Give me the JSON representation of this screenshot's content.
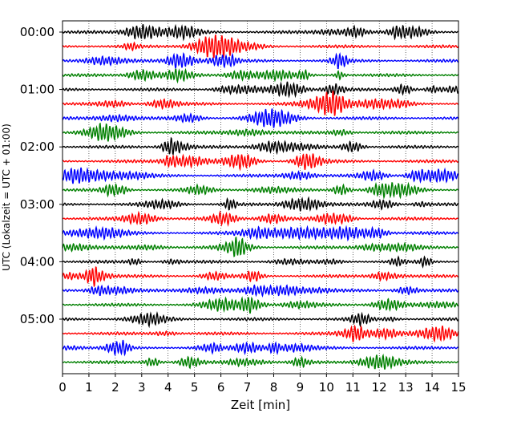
{
  "chart_data": {
    "type": "line",
    "title": "",
    "xlabel": "Zeit  [min]",
    "ylabel": "UTC (Lokalzeit = UTC + 01:00)",
    "xlim": [
      0,
      15
    ],
    "x_ticks": [
      "0",
      "1",
      "2",
      "3",
      "4",
      "5",
      "6",
      "7",
      "8",
      "9",
      "10",
      "11",
      "12",
      "13",
      "14",
      "15"
    ],
    "y_ticks": [
      "00:00",
      "01:00",
      "02:00",
      "03:00",
      "04:00",
      "05:00"
    ],
    "grid": "vertical dotted at each minute",
    "trace_interval_minutes": 15,
    "trace_count": 24,
    "trace_colors": [
      "#000000",
      "#ff0000",
      "#0000ff",
      "#008000"
    ],
    "series": [
      {
        "start": "00:00",
        "color": "#000000"
      },
      {
        "start": "00:15",
        "color": "#ff0000"
      },
      {
        "start": "00:30",
        "color": "#0000ff"
      },
      {
        "start": "00:45",
        "color": "#008000"
      },
      {
        "start": "01:00",
        "color": "#000000"
      },
      {
        "start": "01:15",
        "color": "#ff0000"
      },
      {
        "start": "01:30",
        "color": "#0000ff"
      },
      {
        "start": "01:45",
        "color": "#008000"
      },
      {
        "start": "02:00",
        "color": "#000000"
      },
      {
        "start": "02:15",
        "color": "#ff0000"
      },
      {
        "start": "02:30",
        "color": "#0000ff"
      },
      {
        "start": "02:45",
        "color": "#008000"
      },
      {
        "start": "03:00",
        "color": "#000000"
      },
      {
        "start": "03:15",
        "color": "#ff0000"
      },
      {
        "start": "03:30",
        "color": "#0000ff"
      },
      {
        "start": "03:45",
        "color": "#008000"
      },
      {
        "start": "04:00",
        "color": "#000000"
      },
      {
        "start": "04:15",
        "color": "#ff0000"
      },
      {
        "start": "04:30",
        "color": "#0000ff"
      },
      {
        "start": "04:45",
        "color": "#008000"
      },
      {
        "start": "05:00",
        "color": "#000000"
      },
      {
        "start": "05:15",
        "color": "#ff0000"
      },
      {
        "start": "05:30",
        "color": "#0000ff"
      },
      {
        "start": "05:45",
        "color": "#008000"
      }
    ]
  }
}
